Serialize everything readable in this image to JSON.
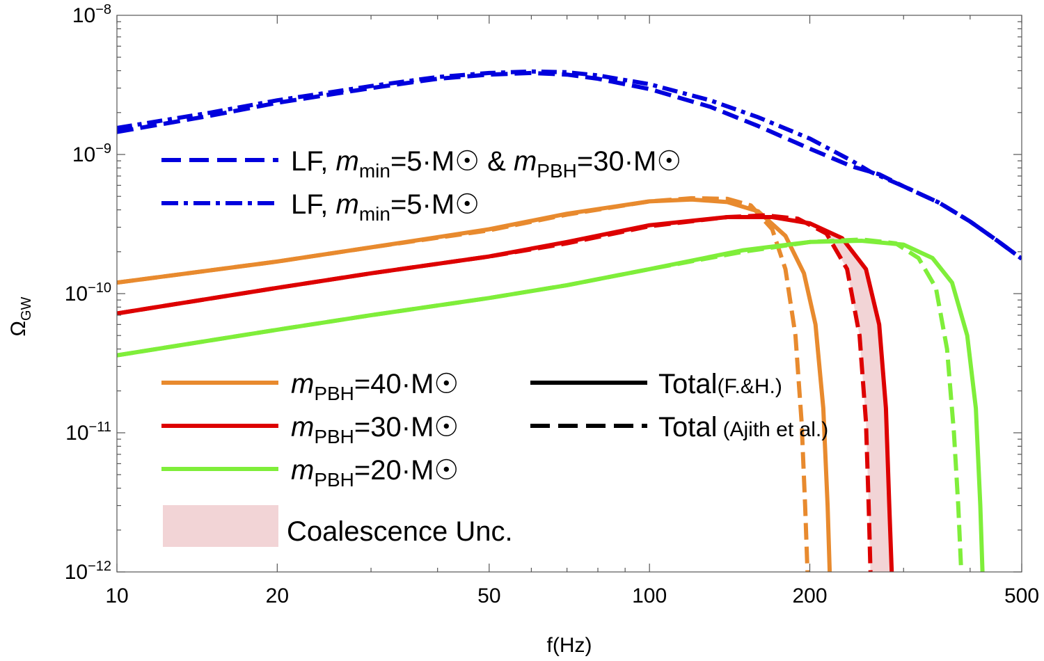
{
  "chart_data": {
    "type": "line",
    "title": "",
    "xlabel": "f(Hz)",
    "ylabel": "Ω",
    "ylabel_sub": "GW",
    "xscale": "log",
    "yscale": "log",
    "xlim": [
      10,
      500
    ],
    "ylim": [
      1e-12,
      1e-08
    ],
    "grid": false,
    "x_ticks": [
      {
        "value": 10,
        "label": "10"
      },
      {
        "value": 20,
        "label": "20"
      },
      {
        "value": 50,
        "label": "50"
      },
      {
        "value": 100,
        "label": "100"
      },
      {
        "value": 200,
        "label": "200"
      },
      {
        "value": 500,
        "label": "500"
      }
    ],
    "y_ticks": [
      {
        "value": 1e-12,
        "base": "10",
        "exp": "−12"
      },
      {
        "value": 1e-11,
        "base": "10",
        "exp": "−11"
      },
      {
        "value": 1e-10,
        "base": "10",
        "exp": "−10"
      },
      {
        "value": 1e-09,
        "base": "10",
        "exp": "−9"
      },
      {
        "value": 1e-08,
        "base": "10",
        "exp": "−8"
      }
    ],
    "series": [
      {
        "id": "lf-30",
        "color": "#0000dd",
        "dash": "dash",
        "points": [
          [
            10,
            1.45e-09
          ],
          [
            15,
            1.9e-09
          ],
          [
            20,
            2.35e-09
          ],
          [
            30,
            3e-09
          ],
          [
            40,
            3.5e-09
          ],
          [
            50,
            3.75e-09
          ],
          [
            60,
            3.85e-09
          ],
          [
            70,
            3.75e-09
          ],
          [
            80,
            3.5e-09
          ],
          [
            100,
            2.95e-09
          ],
          [
            130,
            2.2e-09
          ],
          [
            160,
            1.6e-09
          ],
          [
            200,
            1.1e-09
          ],
          [
            240,
            8.2e-10
          ],
          [
            270,
            7.2e-10
          ],
          [
            300,
            5.9e-10
          ],
          [
            350,
            4.5e-10
          ],
          [
            400,
            3.3e-10
          ],
          [
            450,
            2.4e-10
          ],
          [
            500,
            1.78e-10
          ]
        ]
      },
      {
        "id": "lf-5",
        "color": "#0000dd",
        "dash": "dashdot",
        "points": [
          [
            10,
            1.55e-09
          ],
          [
            15,
            2e-09
          ],
          [
            20,
            2.45e-09
          ],
          [
            30,
            3.1e-09
          ],
          [
            40,
            3.6e-09
          ],
          [
            50,
            3.85e-09
          ],
          [
            60,
            3.95e-09
          ],
          [
            70,
            3.9e-09
          ],
          [
            80,
            3.7e-09
          ],
          [
            100,
            3.2e-09
          ],
          [
            130,
            2.45e-09
          ],
          [
            160,
            1.85e-09
          ],
          [
            200,
            1.3e-09
          ],
          [
            240,
            9e-10
          ],
          [
            260,
            7.5e-10
          ],
          [
            300,
            5.9e-10
          ],
          [
            350,
            4.5e-10
          ],
          [
            400,
            3.3e-10
          ],
          [
            450,
            2.4e-10
          ],
          [
            500,
            1.78e-10
          ]
        ]
      },
      {
        "id": "m40-fh",
        "color": "#e88a2e",
        "dash": "solid",
        "points": [
          [
            10,
            1.2e-10
          ],
          [
            20,
            1.7e-10
          ],
          [
            30,
            2.15e-10
          ],
          [
            50,
            2.9e-10
          ],
          [
            70,
            3.75e-10
          ],
          [
            100,
            4.6e-10
          ],
          [
            120,
            4.75e-10
          ],
          [
            140,
            4.55e-10
          ],
          [
            160,
            3.9e-10
          ],
          [
            180,
            2.6e-10
          ],
          [
            195,
            1.4e-10
          ],
          [
            205,
            6e-11
          ],
          [
            212,
            1.5e-11
          ],
          [
            216,
            3e-12
          ],
          [
            218,
            1e-12
          ]
        ]
      },
      {
        "id": "m40-aj",
        "color": "#e88a2e",
        "dash": "dash",
        "points": [
          [
            10,
            1.2e-10
          ],
          [
            20,
            1.7e-10
          ],
          [
            30,
            2.15e-10
          ],
          [
            50,
            2.85e-10
          ],
          [
            70,
            3.7e-10
          ],
          [
            100,
            4.6e-10
          ],
          [
            120,
            4.85e-10
          ],
          [
            140,
            4.8e-10
          ],
          [
            155,
            4.3e-10
          ],
          [
            170,
            2.9e-10
          ],
          [
            180,
            1.5e-10
          ],
          [
            188,
            5e-11
          ],
          [
            193,
            1.2e-11
          ],
          [
            196,
            3e-12
          ],
          [
            198,
            1e-12
          ]
        ]
      },
      {
        "id": "m30-fh",
        "color": "#dd0000",
        "dash": "solid",
        "points": [
          [
            10,
            7.2e-11
          ],
          [
            20,
            1.1e-10
          ],
          [
            30,
            1.4e-10
          ],
          [
            50,
            1.85e-10
          ],
          [
            70,
            2.35e-10
          ],
          [
            100,
            3.1e-10
          ],
          [
            140,
            3.55e-10
          ],
          [
            170,
            3.55e-10
          ],
          [
            200,
            3.2e-10
          ],
          [
            230,
            2.5e-10
          ],
          [
            255,
            1.5e-10
          ],
          [
            270,
            6e-11
          ],
          [
            278,
            1.5e-11
          ],
          [
            282,
            3e-12
          ],
          [
            285,
            1e-12
          ]
        ]
      },
      {
        "id": "m30-aj",
        "color": "#dd0000",
        "dash": "dash",
        "points": [
          [
            10,
            7.2e-11
          ],
          [
            20,
            1.1e-10
          ],
          [
            30,
            1.4e-10
          ],
          [
            50,
            1.85e-10
          ],
          [
            70,
            2.3e-10
          ],
          [
            100,
            3.05e-10
          ],
          [
            140,
            3.55e-10
          ],
          [
            165,
            3.65e-10
          ],
          [
            190,
            3.45e-10
          ],
          [
            215,
            2.7e-10
          ],
          [
            235,
            1.5e-10
          ],
          [
            248,
            5e-11
          ],
          [
            255,
            1.2e-11
          ],
          [
            258,
            3e-12
          ],
          [
            260,
            1e-12
          ]
        ]
      },
      {
        "id": "m20-fh",
        "color": "#7fee3a",
        "dash": "solid",
        "points": [
          [
            10,
            3.6e-11
          ],
          [
            20,
            5.5e-11
          ],
          [
            30,
            7e-11
          ],
          [
            50,
            9.3e-11
          ],
          [
            70,
            1.15e-10
          ],
          [
            100,
            1.5e-10
          ],
          [
            150,
            2.05e-10
          ],
          [
            200,
            2.35e-10
          ],
          [
            250,
            2.4e-10
          ],
          [
            300,
            2.25e-10
          ],
          [
            340,
            1.8e-10
          ],
          [
            370,
            1.2e-10
          ],
          [
            395,
            5e-11
          ],
          [
            410,
            1.5e-11
          ],
          [
            418,
            3e-12
          ],
          [
            422,
            1e-12
          ]
        ]
      },
      {
        "id": "m20-aj",
        "color": "#7fee3a",
        "dash": "dash",
        "points": [
          [
            10,
            3.6e-11
          ],
          [
            20,
            5.5e-11
          ],
          [
            30,
            7e-11
          ],
          [
            50,
            9.3e-11
          ],
          [
            70,
            1.15e-10
          ],
          [
            100,
            1.5e-10
          ],
          [
            150,
            2e-10
          ],
          [
            200,
            2.35e-10
          ],
          [
            250,
            2.45e-10
          ],
          [
            290,
            2.3e-10
          ],
          [
            320,
            1.8e-10
          ],
          [
            345,
            1.1e-10
          ],
          [
            362,
            4e-11
          ],
          [
            373,
            1e-11
          ],
          [
            380,
            3e-12
          ],
          [
            385,
            1e-12
          ]
        ]
      }
    ],
    "band": {
      "name": "Coalescence Unc.",
      "color": "#f2d4d6",
      "lower_series": "m30-aj",
      "upper_series": "m30-fh",
      "x_from": 160
    }
  },
  "legend_top": [
    {
      "style": "dash",
      "color": "#0000dd",
      "prefix": "LF, ",
      "m1": "m",
      "m1sub": "min",
      "m1val": "=5·M",
      "amp": " & ",
      "m2": "m",
      "m2sub": "PBH",
      "m2val": "=30·M"
    },
    {
      "style": "dashdot",
      "color": "#0000dd",
      "prefix": "LF, ",
      "m1": "m",
      "m1sub": "min",
      "m1val": "=5·M"
    }
  ],
  "legend_mass": [
    {
      "color": "#e88a2e",
      "m": "m",
      "sub": "PBH",
      "val": "=40·M"
    },
    {
      "color": "#dd0000",
      "m": "m",
      "sub": "PBH",
      "val": "=30·M"
    },
    {
      "color": "#7fee3a",
      "m": "m",
      "sub": "PBH",
      "val": "=20·M"
    }
  ],
  "legend_total": [
    {
      "style": "solid",
      "main": "Total",
      "note": "(F.&H.)"
    },
    {
      "style": "dash",
      "main": "Total",
      "note": "(Ajith et al.)"
    }
  ],
  "legend_band": {
    "label": "Coalescence Unc."
  }
}
